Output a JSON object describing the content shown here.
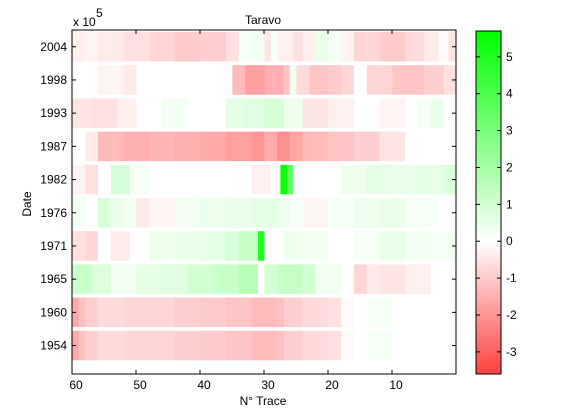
{
  "chart_data": {
    "type": "heatmap",
    "title": "Taravo",
    "xlabel": "N° Trace",
    "ylabel": "Date",
    "scale_note": "x 10",
    "scale_exponent": "5",
    "x_axis": {
      "direction": "reversed",
      "xlim": [
        0,
        60
      ],
      "ticks": [
        "60",
        "50",
        "40",
        "30",
        "20",
        "10"
      ]
    },
    "y_categories": [
      "2004",
      "1998",
      "1993",
      "1987",
      "1982",
      "1976",
      "1971",
      "1965",
      "1960",
      "1954"
    ],
    "colorbar": {
      "vmin": -3.6,
      "vmax": 5.7,
      "ticks": [
        "5",
        "4",
        "3",
        "2",
        "1",
        "0",
        "-1",
        "-2",
        "-3"
      ],
      "low_color": "#ff4040",
      "mid_color": "#ffffff",
      "high_color": "#00ff00"
    },
    "band_rows": [
      {
        "date": "2004",
        "cells": [
          [
            "1.2",
            "-0.5"
          ],
          [
            "2.8",
            "-0.1"
          ],
          [
            "5.0",
            "-0.4"
          ],
          [
            "8.0",
            "-0.7"
          ],
          [
            "12.0",
            "-1.0"
          ],
          [
            "16.0",
            "-0.8"
          ],
          [
            "18.0",
            "-0.2"
          ],
          [
            "20.0",
            "0.3"
          ],
          [
            "22.0",
            "0.5"
          ],
          [
            "24.0",
            "-0.3"
          ],
          [
            "25.5",
            "-0.6"
          ],
          [
            "28.0",
            "-0.3"
          ],
          [
            "29.0",
            "0.2"
          ],
          [
            "30.0",
            "-0.5"
          ],
          [
            "32.0",
            "0.3"
          ],
          [
            "34.0",
            "0.2"
          ],
          [
            "36.0",
            "-0.6"
          ],
          [
            "40.0",
            "-0.9"
          ],
          [
            "44.0",
            "-1.0"
          ],
          [
            "48.0",
            "-0.8"
          ],
          [
            "52.0",
            "-0.6"
          ],
          [
            "56.0",
            "-0.4"
          ],
          [
            "58.0",
            "-0.2"
          ],
          [
            "60.0",
            "-0.3"
          ]
        ]
      },
      {
        "date": "1998",
        "cells": [
          [
            "2.0",
            "-0.6"
          ],
          [
            "5.0",
            "-0.9"
          ],
          [
            "10.0",
            "-1.1"
          ],
          [
            "14.0",
            "-0.8"
          ],
          [
            "16.0",
            "0.0"
          ],
          [
            "18.0",
            "-0.8"
          ],
          [
            "20.0",
            "-1.0"
          ],
          [
            "23.0",
            "-1.1"
          ],
          [
            "25.0",
            "-0.7"
          ],
          [
            "26.0",
            "0.4"
          ],
          [
            "27.0",
            "-1.1"
          ],
          [
            "30.0",
            "-1.5"
          ],
          [
            "33.0",
            "-1.8"
          ],
          [
            "35.0",
            "-1.3"
          ],
          [
            "37.0",
            "0.0"
          ],
          [
            "40.0",
            "0.0"
          ],
          [
            "45.0",
            "0.0"
          ],
          [
            "50.0",
            "0.0"
          ],
          [
            "52.0",
            "-0.4"
          ],
          [
            "56.0",
            "-0.2"
          ],
          [
            "58.0",
            "0.0"
          ],
          [
            "60.0",
            "0.0"
          ]
        ]
      },
      {
        "date": "1993",
        "cells": [
          [
            "2.0",
            "0.0"
          ],
          [
            "4.0",
            "0.5"
          ],
          [
            "6.0",
            "0.2"
          ],
          [
            "8.0",
            "0.0"
          ],
          [
            "12.0",
            "-0.2"
          ],
          [
            "16.0",
            "0.0"
          ],
          [
            "20.0",
            "-0.3"
          ],
          [
            "24.0",
            "-0.5"
          ],
          [
            "27.0",
            "0.4"
          ],
          [
            "30.0",
            "0.9"
          ],
          [
            "33.0",
            "0.7"
          ],
          [
            "36.0",
            "0.6"
          ],
          [
            "38.0",
            "0.0"
          ],
          [
            "42.0",
            "0.0"
          ],
          [
            "46.0",
            "0.3"
          ],
          [
            "50.0",
            "0.0"
          ],
          [
            "53.0",
            "-0.3"
          ],
          [
            "57.0",
            "-0.6"
          ],
          [
            "60.0",
            "-0.5"
          ]
        ]
      },
      {
        "date": "1987",
        "cells": [
          [
            "8.0",
            "0.0"
          ],
          [
            "12.0",
            "-0.5"
          ],
          [
            "16.0",
            "-0.9"
          ],
          [
            "20.0",
            "-1.1"
          ],
          [
            "24.0",
            "-1.3"
          ],
          [
            "26.0",
            "-1.7"
          ],
          [
            "28.0",
            "-2.1"
          ],
          [
            "30.0",
            "-1.6"
          ],
          [
            "32.0",
            "-2.0"
          ],
          [
            "36.0",
            "-1.8"
          ],
          [
            "40.0",
            "-1.6"
          ],
          [
            "44.0",
            "-1.5"
          ],
          [
            "48.0",
            "-1.4"
          ],
          [
            "52.0",
            "-1.5"
          ],
          [
            "56.0",
            "-1.3"
          ],
          [
            "58.0",
            "-0.4"
          ],
          [
            "60.0",
            "0.0"
          ]
        ]
      },
      {
        "date": "1982",
        "cells": [
          [
            "2.0",
            "0.8"
          ],
          [
            "6.0",
            "0.6"
          ],
          [
            "10.0",
            "0.5"
          ],
          [
            "14.0",
            "0.6"
          ],
          [
            "18.0",
            "0.4"
          ],
          [
            "22.0",
            "0.0"
          ],
          [
            "25.5",
            "0.0"
          ],
          [
            "26.5",
            "3.5"
          ],
          [
            "27.5",
            "5.5"
          ],
          [
            "29.0",
            "0.0"
          ],
          [
            "32.0",
            "-0.3"
          ],
          [
            "36.0",
            "0.0"
          ],
          [
            "40.0",
            "0.0"
          ],
          [
            "44.0",
            "0.0"
          ],
          [
            "48.0",
            "0.0"
          ],
          [
            "51.0",
            "0.2"
          ],
          [
            "54.0",
            "0.9"
          ],
          [
            "56.0",
            "0.0"
          ],
          [
            "58.0",
            "-0.6"
          ],
          [
            "60.0",
            "-0.2"
          ]
        ]
      },
      {
        "date": "1976",
        "cells": [
          [
            "3.0",
            "0.0"
          ],
          [
            "8.0",
            "0.2"
          ],
          [
            "12.0",
            "0.5"
          ],
          [
            "16.0",
            "0.4"
          ],
          [
            "20.0",
            "0.2"
          ],
          [
            "24.0",
            "-0.2"
          ],
          [
            "26.0",
            "0.2"
          ],
          [
            "28.0",
            "0.4"
          ],
          [
            "32.0",
            "0.6"
          ],
          [
            "36.0",
            "0.5"
          ],
          [
            "40.0",
            "0.4"
          ],
          [
            "44.0",
            "0.3"
          ],
          [
            "48.0",
            "-0.2"
          ],
          [
            "50.0",
            "-0.4"
          ],
          [
            "52.0",
            "0.3"
          ],
          [
            "54.0",
            "0.5"
          ],
          [
            "56.0",
            "0.9"
          ],
          [
            "58.0",
            "0.0"
          ],
          [
            "60.0",
            "0.2"
          ]
        ]
      },
      {
        "date": "1971",
        "cells": [
          [
            "4.0",
            "0.2"
          ],
          [
            "8.0",
            "0.3"
          ],
          [
            "12.0",
            "0.5"
          ],
          [
            "16.0",
            "0.2"
          ],
          [
            "20.0",
            "0.0"
          ],
          [
            "24.0",
            "0.3"
          ],
          [
            "27.0",
            "0.4"
          ],
          [
            "30.0",
            "0.0"
          ],
          [
            "31.0",
            "5.0"
          ],
          [
            "34.0",
            "1.3"
          ],
          [
            "36.0",
            "0.9"
          ],
          [
            "40.0",
            "0.6"
          ],
          [
            "44.0",
            "0.5"
          ],
          [
            "48.0",
            "0.4"
          ],
          [
            "51.0",
            "0.0"
          ],
          [
            "54.0",
            "-0.4"
          ],
          [
            "56.0",
            "0.0"
          ],
          [
            "58.0",
            "-0.8"
          ],
          [
            "60.0",
            "-0.6"
          ]
        ]
      },
      {
        "date": "1965",
        "cells": [
          [
            "4.0",
            "0.0"
          ],
          [
            "8.0",
            "-0.3"
          ],
          [
            "12.0",
            "-0.5"
          ],
          [
            "14.0",
            "-0.4"
          ],
          [
            "16.0",
            "-0.8"
          ],
          [
            "18.0",
            "0.0"
          ],
          [
            "22.0",
            "0.3"
          ],
          [
            "24.0",
            "1.0"
          ],
          [
            "28.0",
            "1.3"
          ],
          [
            "30.0",
            "1.0"
          ],
          [
            "31.0",
            "0.0"
          ],
          [
            "34.0",
            "1.6"
          ],
          [
            "38.0",
            "1.2"
          ],
          [
            "42.0",
            "1.0"
          ],
          [
            "46.0",
            "0.7"
          ],
          [
            "50.0",
            "0.6"
          ],
          [
            "54.0",
            "0.3"
          ],
          [
            "57.0",
            "0.8"
          ],
          [
            "60.0",
            "1.2"
          ]
        ]
      },
      {
        "date": "1960",
        "cells": [
          [
            "10.0",
            "0.0"
          ],
          [
            "14.0",
            "0.2"
          ],
          [
            "16.0",
            "0.0"
          ],
          [
            "18.0",
            "-0.1"
          ],
          [
            "20.0",
            "-0.6"
          ],
          [
            "24.0",
            "-0.7"
          ],
          [
            "27.0",
            "-0.9"
          ],
          [
            "28.0",
            "-1.2"
          ],
          [
            "32.0",
            "-1.3"
          ],
          [
            "36.0",
            "-1.1"
          ],
          [
            "40.0",
            "-1.0"
          ],
          [
            "44.0",
            "-0.9"
          ],
          [
            "48.0",
            "-0.8"
          ],
          [
            "52.0",
            "-0.8"
          ],
          [
            "56.0",
            "-0.7"
          ],
          [
            "58.0",
            "-0.9"
          ],
          [
            "59.0",
            "-1.2"
          ],
          [
            "60.0",
            "-1.6"
          ]
        ]
      },
      {
        "date": "1954",
        "cells": [
          [
            "10.0",
            "0.0"
          ],
          [
            "14.0",
            "0.2"
          ],
          [
            "16.0",
            "0.0"
          ],
          [
            "18.0",
            "-0.1"
          ],
          [
            "20.0",
            "-0.6"
          ],
          [
            "24.0",
            "-0.7"
          ],
          [
            "27.0",
            "-0.9"
          ],
          [
            "28.0",
            "-1.2"
          ],
          [
            "32.0",
            "-1.3"
          ],
          [
            "36.0",
            "-1.1"
          ],
          [
            "40.0",
            "-1.0"
          ],
          [
            "44.0",
            "-0.9"
          ],
          [
            "48.0",
            "-0.8"
          ],
          [
            "52.0",
            "-0.8"
          ],
          [
            "56.0",
            "-0.7"
          ],
          [
            "58.0",
            "-0.9"
          ],
          [
            "59.0",
            "-1.2"
          ],
          [
            "60.0",
            "-1.6"
          ]
        ]
      }
    ]
  }
}
